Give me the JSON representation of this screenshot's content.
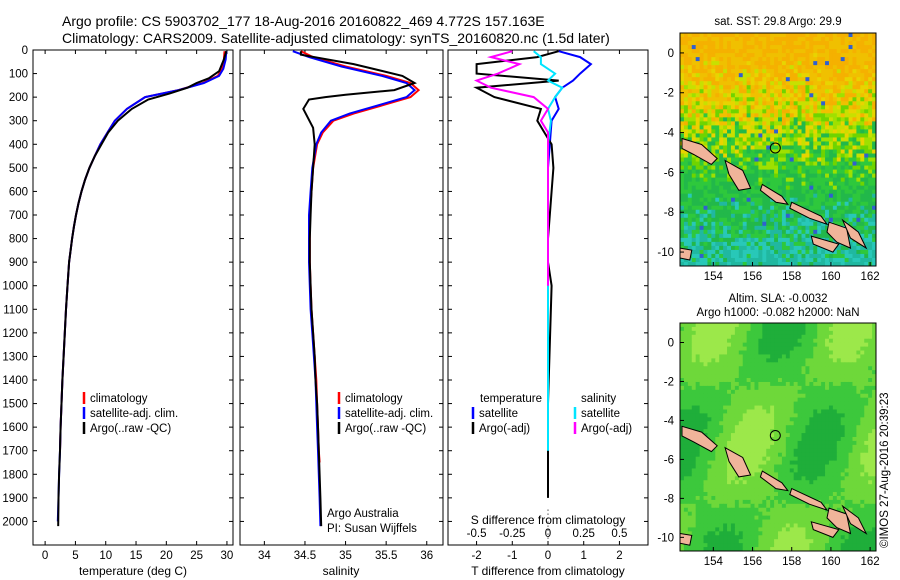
{
  "header": {
    "line1": "Argo profile: CS 5903702_177 18-Aug-2016 20160822_469 4.772S 157.163E",
    "line2": "Climatology: CARS2009. Satellite-adjusted climatology: synTS_20160820.nc (1.5d later)"
  },
  "colors": {
    "climatology": "#ff0000",
    "satellite": "#0000ff",
    "argo": "#000000",
    "sat_salinity": "#00e5ff",
    "argo_adj_salinity": "#ff00ff"
  },
  "panels": {
    "temperature": {
      "xlabel": "temperature (deg C)",
      "legend": [
        "climatology",
        "satellite-adj. clim.",
        "Argo(..raw -QC)"
      ]
    },
    "salinity": {
      "xlabel": "salinity",
      "legend": [
        "climatology",
        "satellite-adj. clim.",
        "Argo(..raw -QC)"
      ],
      "note1": "Argo Australia",
      "note2": "PI: Susan Wijffels"
    },
    "difference": {
      "xlabel": "T difference from climatology",
      "s_label": "S difference from climatology",
      "s_ticks": [
        "-0.5",
        "-0.25",
        "0",
        "0.25",
        "0.5"
      ],
      "legend_t_title": "temperature",
      "legend_s_title": "salinity",
      "legend_t": [
        "satellite",
        "Argo(-adj)"
      ],
      "legend_s": [
        "satellite",
        "Argo(-adj)"
      ]
    },
    "sst_map": {
      "title": "sat. SST: 29.8 Argo: 29.9"
    },
    "sla_map": {
      "title1": "Altim. SLA: -0.0032",
      "title2": "Argo h1000: -0.082 h2000: NaN"
    }
  },
  "credit": "©IMOS 27-Aug-2016 20:39:23",
  "chart_data": [
    {
      "type": "line",
      "title": "",
      "xlabel": "temperature (deg C)",
      "ylabel": "",
      "xlim": [
        -2,
        31
      ],
      "ylim": [
        2100,
        0
      ],
      "xticks": [
        0,
        5,
        10,
        15,
        20,
        25,
        30
      ],
      "yticks": [
        0,
        100,
        200,
        300,
        400,
        500,
        600,
        700,
        800,
        900,
        1000,
        1100,
        1200,
        1300,
        1400,
        1500,
        1600,
        1700,
        1800,
        1900,
        2000
      ],
      "series": [
        {
          "name": "climatology",
          "color": "#ff0000",
          "x": [
            29.6,
            29.5,
            29.2,
            28.5,
            26.0,
            22.0,
            16.5,
            13.5,
            11.5,
            10.3,
            9.1,
            8.2,
            7.3,
            6.6,
            6.0,
            5.5,
            5.1,
            4.75,
            4.45,
            4.2,
            3.95,
            3.7,
            3.45,
            3.25,
            3.05,
            2.85,
            2.7,
            2.55,
            2.45
          ],
          "y": [
            5,
            40,
            80,
            110,
            140,
            170,
            200,
            250,
            300,
            350,
            400,
            450,
            500,
            550,
            600,
            650,
            700,
            750,
            800,
            850,
            900,
            1000,
            1100,
            1200,
            1300,
            1400,
            1500,
            1600,
            1700
          ]
        },
        {
          "name": "satellite-adj. clim.",
          "color": "#0000ff",
          "x": [
            29.9,
            29.8,
            29.4,
            28.7,
            26.2,
            22.0,
            16.5,
            13.5,
            11.5,
            10.3,
            9.1,
            8.2,
            7.3,
            6.6,
            6.0,
            5.5,
            5.1,
            4.75,
            4.45,
            4.2,
            3.95,
            3.7,
            3.45,
            3.25,
            3.05,
            2.85,
            2.7,
            2.55,
            2.45,
            2.3,
            2.2,
            2.1
          ],
          "y": [
            5,
            40,
            80,
            110,
            140,
            170,
            200,
            250,
            300,
            350,
            400,
            450,
            500,
            550,
            600,
            650,
            700,
            750,
            800,
            850,
            900,
            1000,
            1100,
            1200,
            1300,
            1400,
            1500,
            1600,
            1700,
            1800,
            1900,
            2000
          ]
        },
        {
          "name": "Argo(..raw -QC)",
          "color": "#000000",
          "x": [
            29.9,
            29.5,
            28.7,
            27.0,
            25.0,
            23.5,
            20.5,
            17.0,
            14.3,
            12.0,
            10.4,
            9.3,
            8.2,
            7.3,
            6.6,
            6.0,
            5.5,
            5.1,
            4.75,
            4.45,
            4.2,
            3.95,
            3.7,
            3.45,
            3.25,
            3.05,
            2.85,
            2.7,
            2.55,
            2.45,
            2.3,
            2.2,
            2.15
          ],
          "y": [
            5,
            40,
            90,
            120,
            140,
            160,
            185,
            210,
            250,
            300,
            350,
            400,
            450,
            500,
            550,
            600,
            650,
            700,
            750,
            800,
            850,
            900,
            1000,
            1100,
            1200,
            1300,
            1400,
            1500,
            1600,
            1700,
            1800,
            1900,
            2020
          ]
        }
      ]
    },
    {
      "type": "line",
      "title": "",
      "xlabel": "salinity",
      "ylabel": "",
      "xlim": [
        33.7,
        36.2
      ],
      "ylim": [
        2100,
        0
      ],
      "xticks": [
        34,
        34.5,
        35,
        35.5,
        36
      ],
      "series": [
        {
          "name": "climatology",
          "color": "#ff0000",
          "x": [
            34.45,
            34.6,
            35.0,
            35.5,
            35.8,
            35.9,
            35.8,
            35.5,
            35.1,
            34.85,
            34.72,
            34.65,
            34.6,
            34.58,
            34.56,
            34.56,
            34.56,
            34.57,
            34.58,
            34.6,
            34.62,
            34.64,
            34.65,
            34.66,
            34.67,
            34.68
          ],
          "y": [
            5,
            30,
            70,
            110,
            140,
            170,
            200,
            230,
            270,
            300,
            350,
            400,
            500,
            600,
            700,
            800,
            900,
            1000,
            1100,
            1200,
            1300,
            1400,
            1500,
            1600,
            1700,
            1750
          ]
        },
        {
          "name": "satellite-adj. clim.",
          "color": "#0000ff",
          "x": [
            34.35,
            34.55,
            34.95,
            35.45,
            35.75,
            35.85,
            35.75,
            35.45,
            35.05,
            34.82,
            34.7,
            34.64,
            34.59,
            34.57,
            34.55,
            34.55,
            34.55,
            34.56,
            34.57,
            34.59,
            34.61,
            34.63,
            34.64,
            34.65,
            34.66,
            34.67,
            34.68,
            34.69
          ],
          "y": [
            5,
            30,
            70,
            110,
            140,
            170,
            200,
            230,
            270,
            300,
            350,
            400,
            500,
            600,
            700,
            800,
            900,
            1000,
            1100,
            1200,
            1300,
            1400,
            1500,
            1600,
            1700,
            1800,
            1900,
            2020
          ]
        },
        {
          "name": "Argo(..raw -QC)",
          "color": "#000000",
          "x": [
            34.45,
            34.45,
            35.1,
            35.7,
            35.85,
            35.6,
            35.0,
            34.75,
            34.55,
            34.48,
            34.6,
            34.62,
            34.6,
            34.58,
            34.57,
            34.56,
            34.56,
            34.57,
            34.58,
            34.6,
            34.62,
            34.63,
            34.65,
            34.66,
            34.67,
            34.68,
            34.69,
            34.7
          ],
          "y": [
            5,
            20,
            60,
            110,
            140,
            170,
            190,
            200,
            210,
            250,
            330,
            400,
            500,
            600,
            700,
            800,
            900,
            1000,
            1100,
            1200,
            1300,
            1400,
            1500,
            1600,
            1700,
            1800,
            1900,
            2020
          ]
        }
      ]
    },
    {
      "type": "line",
      "title": "",
      "xlabel": "T difference from climatology",
      "ylabel": "",
      "xlim": [
        -2.8,
        2.8
      ],
      "ylim": [
        2100,
        0
      ],
      "xticks": [
        -2,
        -1,
        0,
        1,
        2
      ],
      "series": [
        {
          "name": "temperature satellite",
          "color": "#0000ff",
          "x": [
            0.3,
            0.9,
            1.2,
            0.9,
            0.7,
            0.4,
            0.2,
            0.3,
            0.1,
            0.05,
            0,
            0,
            0,
            0,
            0
          ],
          "y": [
            5,
            30,
            60,
            100,
            130,
            160,
            200,
            250,
            300,
            400,
            500,
            600,
            800,
            1000,
            1700
          ]
        },
        {
          "name": "temperature Argo(-adj)",
          "color": "#000000",
          "x": [
            0.3,
            -0.3,
            -2.0,
            -2.0,
            0.3,
            -2.0,
            -1.5,
            -0.2,
            -0.3,
            -0.1,
            0.1,
            0.15,
            0.1,
            0.05,
            0,
            0,
            0.1,
            0,
            0
          ],
          "y": [
            5,
            30,
            60,
            100,
            130,
            160,
            200,
            250,
            300,
            350,
            400,
            500,
            600,
            700,
            800,
            900,
            1000,
            1500,
            1900
          ]
        }
      ]
    },
    {
      "type": "line",
      "title": "",
      "xlabel": "S difference from climatology",
      "ylabel": "",
      "xlim": [
        -0.7,
        0.7
      ],
      "ylim": [
        2100,
        0
      ],
      "xticks": [
        -0.5,
        -0.25,
        0,
        0.25,
        0.5
      ],
      "series": [
        {
          "name": "salinity satellite",
          "color": "#00e5ff",
          "x": [
            -0.1,
            -0.05,
            -0.05,
            0.05,
            0,
            0.1,
            0.05,
            0,
            0.02,
            0,
            0,
            0,
            0,
            0,
            0
          ],
          "y": [
            5,
            30,
            60,
            100,
            130,
            160,
            200,
            250,
            300,
            400,
            500,
            600,
            800,
            1000,
            1700
          ]
        },
        {
          "name": "salinity Argo(-adj)",
          "color": "#ff00ff",
          "x": [
            -0.25,
            -0.4,
            -0.2,
            -0.35,
            -0.5,
            -0.4,
            -0.1,
            0,
            -0.05,
            0,
            0,
            0,
            0,
            0
          ],
          "y": [
            5,
            30,
            60,
            100,
            130,
            160,
            200,
            250,
            300,
            350,
            400,
            500,
            800,
            1000
          ]
        }
      ]
    },
    {
      "type": "heatmap",
      "title": "sat. SST: 29.8 Argo: 29.9",
      "xlim": [
        152.3,
        162.3
      ],
      "ylim": [
        -10.7,
        1.0
      ],
      "xticks": [
        154,
        156,
        158,
        160,
        162
      ],
      "yticks": [
        0,
        -2,
        -4,
        -6,
        -8,
        -10
      ],
      "argo_position": {
        "lon": 157.163,
        "lat": -4.772
      }
    },
    {
      "type": "heatmap",
      "title": "Altim. SLA: -0.0032",
      "subtitle": "Argo h1000: -0.082 h2000: NaN",
      "xlim": [
        152.3,
        162.3
      ],
      "ylim": [
        -10.7,
        1.0
      ],
      "xticks": [
        154,
        156,
        158,
        160,
        162
      ],
      "yticks": [
        0,
        -2,
        -4,
        -6,
        -8,
        -10
      ],
      "argo_position": {
        "lon": 157.163,
        "lat": -4.772
      }
    }
  ]
}
